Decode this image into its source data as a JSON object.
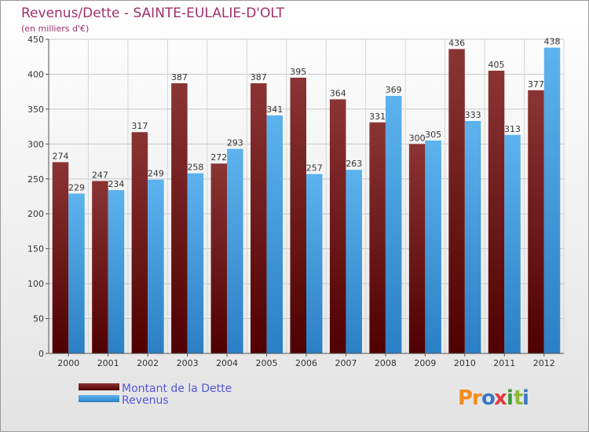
{
  "chart_data": {
    "type": "bar",
    "title": "Revenus/Dette - SAINTE-EULALIE-D'OLT",
    "subtitle": "(en milliers d'€)",
    "categories": [
      "2000",
      "2001",
      "2002",
      "2003",
      "2004",
      "2005",
      "2006",
      "2007",
      "2008",
      "2009",
      "2010",
      "2011",
      "2012"
    ],
    "series": [
      {
        "name": "Montant de la Dette",
        "color": "#7a2020",
        "values": [
          274,
          247,
          317,
          387,
          272,
          387,
          395,
          364,
          331,
          300,
          436,
          405,
          377
        ]
      },
      {
        "name": "Revenus",
        "color": "#4ea3e4",
        "values": [
          229,
          234,
          249,
          258,
          293,
          341,
          257,
          263,
          369,
          305,
          333,
          313,
          438
        ]
      }
    ],
    "ylim": [
      0,
      450
    ],
    "yticks": [
      0,
      50,
      100,
      150,
      200,
      250,
      300,
      350,
      400,
      450
    ],
    "grid": true,
    "legend_position": "bottom-left",
    "xlabel": "",
    "ylabel": ""
  },
  "branding": {
    "logo_text": "Proxiti"
  }
}
